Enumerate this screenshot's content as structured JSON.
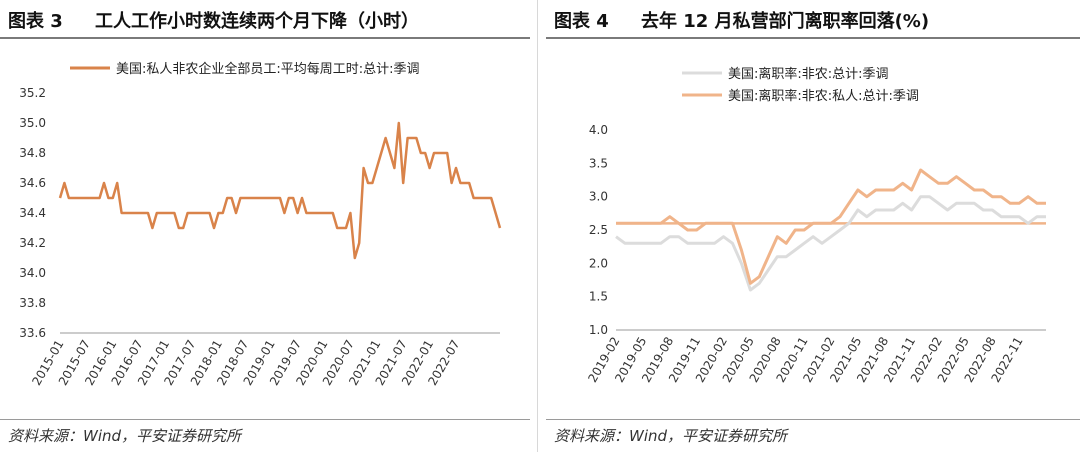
{
  "left": {
    "fig_num": "图表 3",
    "title": "工人工作小时数连续两个月下降（小时）",
    "source": "资料来源：Wind，平安证券研究所"
  },
  "right": {
    "fig_num": "图表 4",
    "title": "去年 12 月私营部门离职率回落(%)",
    "source": "资料来源：Wind，平安证券研究所"
  },
  "chart_data": [
    {
      "type": "line",
      "title": "工人工作小时数连续两个月下降（小时）",
      "ylim": [
        33.6,
        35.2
      ],
      "yticks": [
        "35.2",
        "35.0",
        "34.8",
        "34.6",
        "34.4",
        "34.2",
        "34.0",
        "33.8",
        "33.6"
      ],
      "xticks": [
        "2015-01",
        "2015-07",
        "2016-01",
        "2016-07",
        "2017-01",
        "2017-07",
        "2018-01",
        "2018-07",
        "2019-01",
        "2019-07",
        "2020-01",
        "2020-07",
        "2021-01",
        "2021-07",
        "2022-01",
        "2022-07"
      ],
      "legend_position": "top-left",
      "series": [
        {
          "name": "美国:私人非农企业全部员工:平均每周工时:总计:季调",
          "color": "#d9834a",
          "start": "2015-01",
          "values": [
            34.5,
            34.6,
            34.5,
            34.5,
            34.5,
            34.5,
            34.5,
            34.5,
            34.5,
            34.5,
            34.6,
            34.5,
            34.5,
            34.6,
            34.4,
            34.4,
            34.4,
            34.4,
            34.4,
            34.4,
            34.4,
            34.3,
            34.4,
            34.4,
            34.4,
            34.4,
            34.4,
            34.3,
            34.3,
            34.4,
            34.4,
            34.4,
            34.4,
            34.4,
            34.4,
            34.3,
            34.4,
            34.4,
            34.5,
            34.5,
            34.4,
            34.5,
            34.5,
            34.5,
            34.5,
            34.5,
            34.5,
            34.5,
            34.5,
            34.5,
            34.5,
            34.4,
            34.5,
            34.5,
            34.4,
            34.5,
            34.4,
            34.4,
            34.4,
            34.4,
            34.4,
            34.4,
            34.4,
            34.3,
            34.3,
            34.3,
            34.4,
            34.1,
            34.2,
            34.7,
            34.6,
            34.6,
            34.7,
            34.8,
            34.9,
            34.8,
            34.7,
            35.0,
            34.6,
            34.9,
            34.9,
            34.9,
            34.8,
            34.8,
            34.7,
            34.8,
            34.8,
            34.8,
            34.8,
            34.6,
            34.7,
            34.6,
            34.6,
            34.6,
            34.5,
            34.5,
            34.5,
            34.5,
            34.5,
            34.4,
            34.3
          ]
        }
      ]
    },
    {
      "type": "line",
      "title": "去年 12 月私营部门离职率回落(%)",
      "ylim": [
        1.0,
        4.0
      ],
      "yticks": [
        "4.0",
        "3.5",
        "3.0",
        "2.5",
        "2.0",
        "1.5",
        "1.0"
      ],
      "xticks": [
        "2019-02",
        "2019-05",
        "2019-08",
        "2019-11",
        "2020-02",
        "2020-05",
        "2020-08",
        "2020-11",
        "2021-02",
        "2021-05",
        "2021-08",
        "2021-11",
        "2022-02",
        "2022-05",
        "2022-08",
        "2022-11"
      ],
      "legend_position": "top-left",
      "reference_line": 2.6,
      "series": [
        {
          "name": "美国:离职率:非农:总计:季调",
          "color": "#dcdcdc",
          "start": "2019-02",
          "values": [
            2.4,
            2.3,
            2.3,
            2.3,
            2.3,
            2.3,
            2.4,
            2.4,
            2.3,
            2.3,
            2.3,
            2.3,
            2.4,
            2.3,
            2.0,
            1.6,
            1.7,
            1.9,
            2.1,
            2.1,
            2.2,
            2.3,
            2.4,
            2.3,
            2.4,
            2.5,
            2.6,
            2.8,
            2.7,
            2.8,
            2.8,
            2.8,
            2.9,
            2.8,
            3.0,
            3.0,
            2.9,
            2.8,
            2.9,
            2.9,
            2.9,
            2.8,
            2.8,
            2.7,
            2.7,
            2.7,
            2.6,
            2.7,
            2.7
          ]
        },
        {
          "name": "美国:离职率:非农:私人:总计:季调",
          "color": "#f0b48a",
          "start": "2019-02",
          "values": [
            2.6,
            2.6,
            2.6,
            2.6,
            2.6,
            2.6,
            2.7,
            2.6,
            2.5,
            2.5,
            2.6,
            2.6,
            2.6,
            2.6,
            2.2,
            1.7,
            1.8,
            2.1,
            2.4,
            2.3,
            2.5,
            2.5,
            2.6,
            2.6,
            2.6,
            2.7,
            2.9,
            3.1,
            3.0,
            3.1,
            3.1,
            3.1,
            3.2,
            3.1,
            3.4,
            3.3,
            3.2,
            3.2,
            3.3,
            3.2,
            3.1,
            3.1,
            3.0,
            3.0,
            2.9,
            2.9,
            3.0,
            2.9,
            2.9
          ]
        }
      ]
    }
  ]
}
